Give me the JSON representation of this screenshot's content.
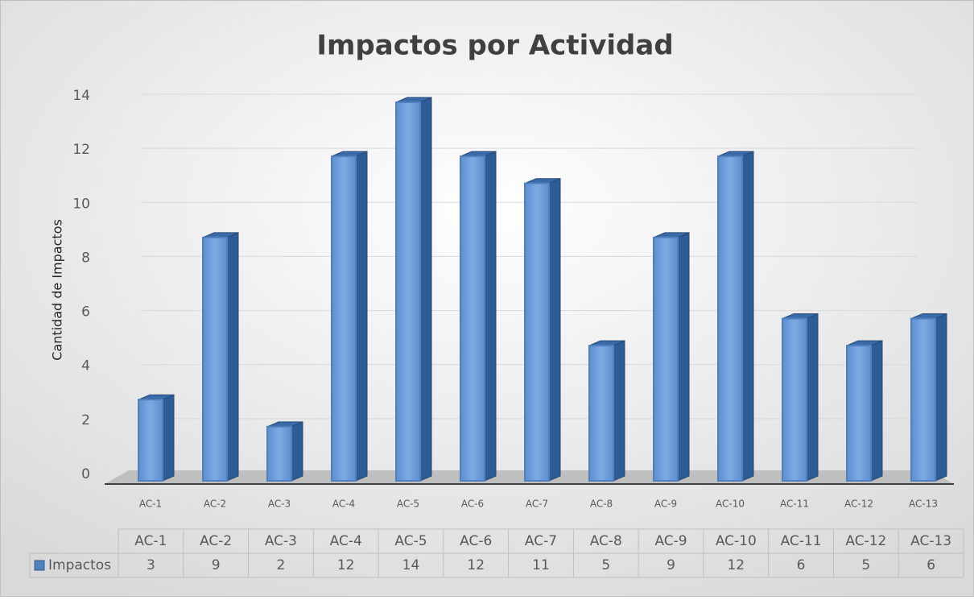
{
  "chart_data": {
    "type": "bar3d",
    "title": "Impactos por Actividad",
    "y_label": "Cantidad de Impactos",
    "categories": [
      "AC-1",
      "AC-2",
      "AC-3",
      "AC-4",
      "AC-5",
      "AC-6",
      "AC-7",
      "AC-8",
      "AC-9",
      "AC-10",
      "AC-11",
      "AC-12",
      "AC-13"
    ],
    "series": [
      {
        "name": "Impactos",
        "color": "#4f81bd",
        "values": [
          3,
          9,
          2,
          12,
          14,
          12,
          11,
          5,
          9,
          12,
          6,
          5,
          6
        ]
      }
    ],
    "ylim": [
      0,
      14
    ],
    "yticks": [
      0,
      2,
      4,
      6,
      8,
      10,
      12,
      14
    ],
    "grid": true,
    "data_table": true
  }
}
